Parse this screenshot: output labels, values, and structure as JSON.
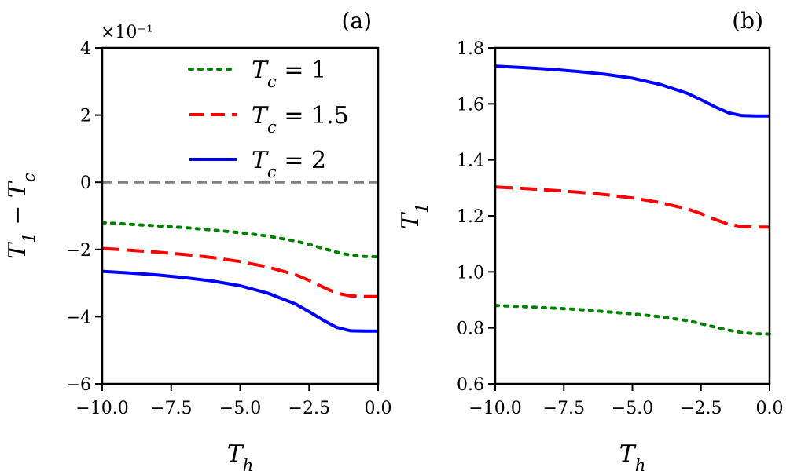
{
  "chart_data": [
    {
      "type": "line",
      "panel_label": "(a)",
      "xlabel": "T_h",
      "ylabel": "T_1 − T_c",
      "offset_text": "×10⁻¹",
      "xlim": [
        -10.0,
        0.0
      ],
      "ylim": [
        -6,
        4
      ],
      "xticks": [
        -10.0,
        -7.5,
        -5.0,
        -2.5,
        0.0
      ],
      "xtick_labels": [
        "−10.0",
        "−7.5",
        "−5.0",
        "−2.5",
        "0.0"
      ],
      "yticks": [
        -6,
        -4,
        -2,
        0,
        2,
        4
      ],
      "ytick_labels": [
        "−6",
        "−4",
        "−2",
        "0",
        "2",
        "4"
      ],
      "reference_line": {
        "y": 0,
        "color": "#808080",
        "style": "dashed"
      },
      "legend": {
        "position": "top-right"
      },
      "series": [
        {
          "name": "T_c = 1",
          "legend_base": "T",
          "legend_sub": "c",
          "legend_rest": " = 1",
          "color": "#008000",
          "style": "dotted",
          "x": [
            -10.0,
            -9.0,
            -8.0,
            -7.0,
            -6.0,
            -5.0,
            -4.0,
            -3.0,
            -2.5,
            -2.0,
            -1.5,
            -1.0,
            -0.5,
            0.0
          ],
          "y": [
            -1.2,
            -1.25,
            -1.3,
            -1.35,
            -1.42,
            -1.5,
            -1.6,
            -1.75,
            -1.85,
            -1.97,
            -2.08,
            -2.17,
            -2.21,
            -2.22
          ]
        },
        {
          "name": "T_c = 1.5",
          "legend_base": "T",
          "legend_sub": "c",
          "legend_rest": " = 1.5",
          "color": "#ff0000",
          "style": "dashed",
          "x": [
            -10.0,
            -9.0,
            -8.0,
            -7.0,
            -6.0,
            -5.0,
            -4.0,
            -3.0,
            -2.5,
            -2.0,
            -1.5,
            -1.0,
            -0.5,
            0.0
          ],
          "y": [
            -1.97,
            -2.02,
            -2.08,
            -2.15,
            -2.24,
            -2.36,
            -2.52,
            -2.75,
            -2.92,
            -3.12,
            -3.3,
            -3.38,
            -3.4,
            -3.4
          ]
        },
        {
          "name": "T_c = 2",
          "legend_base": "T",
          "legend_sub": "c",
          "legend_rest": " = 2",
          "color": "#0000ff",
          "style": "solid",
          "x": [
            -10.0,
            -9.0,
            -8.0,
            -7.0,
            -6.0,
            -5.0,
            -4.0,
            -3.0,
            -2.5,
            -2.0,
            -1.5,
            -1.0,
            -0.5,
            0.0
          ],
          "y": [
            -2.65,
            -2.7,
            -2.76,
            -2.84,
            -2.94,
            -3.08,
            -3.3,
            -3.62,
            -3.85,
            -4.1,
            -4.32,
            -4.42,
            -4.43,
            -4.43
          ]
        }
      ]
    },
    {
      "type": "line",
      "panel_label": "(b)",
      "xlabel": "T_h",
      "ylabel": "T_1",
      "xlim": [
        -10.0,
        0.0
      ],
      "ylim": [
        0.6,
        1.8
      ],
      "xticks": [
        -10.0,
        -7.5,
        -5.0,
        -2.5,
        0.0
      ],
      "xtick_labels": [
        "−10.0",
        "−7.5",
        "−5.0",
        "−2.5",
        "0.0"
      ],
      "yticks": [
        0.6,
        0.8,
        1.0,
        1.2,
        1.4,
        1.6,
        1.8
      ],
      "ytick_labels": [
        "0.6",
        "0.8",
        "1.0",
        "1.2",
        "1.4",
        "1.6",
        "1.8"
      ],
      "series": [
        {
          "name": "T_c = 1",
          "color": "#008000",
          "style": "dotted",
          "x": [
            -10.0,
            -9.0,
            -8.0,
            -7.0,
            -6.0,
            -5.0,
            -4.0,
            -3.0,
            -2.5,
            -2.0,
            -1.5,
            -1.0,
            -0.5,
            0.0
          ],
          "y": [
            0.88,
            0.876,
            0.871,
            0.866,
            0.858,
            0.85,
            0.84,
            0.826,
            0.815,
            0.803,
            0.792,
            0.783,
            0.779,
            0.778
          ]
        },
        {
          "name": "T_c = 1.5",
          "color": "#ff0000",
          "style": "dashed",
          "x": [
            -10.0,
            -9.0,
            -8.0,
            -7.0,
            -6.0,
            -5.0,
            -4.0,
            -3.0,
            -2.5,
            -2.0,
            -1.5,
            -1.0,
            -0.5,
            0.0
          ],
          "y": [
            1.303,
            1.298,
            1.292,
            1.285,
            1.276,
            1.264,
            1.248,
            1.225,
            1.208,
            1.188,
            1.17,
            1.162,
            1.16,
            1.16
          ]
        },
        {
          "name": "T_c = 2",
          "color": "#0000ff",
          "style": "solid",
          "x": [
            -10.0,
            -9.0,
            -8.0,
            -7.0,
            -6.0,
            -5.0,
            -4.0,
            -3.0,
            -2.5,
            -2.0,
            -1.5,
            -1.0,
            -0.5,
            0.0
          ],
          "y": [
            1.735,
            1.73,
            1.724,
            1.716,
            1.706,
            1.692,
            1.67,
            1.638,
            1.615,
            1.59,
            1.568,
            1.558,
            1.557,
            1.557
          ]
        }
      ]
    }
  ]
}
